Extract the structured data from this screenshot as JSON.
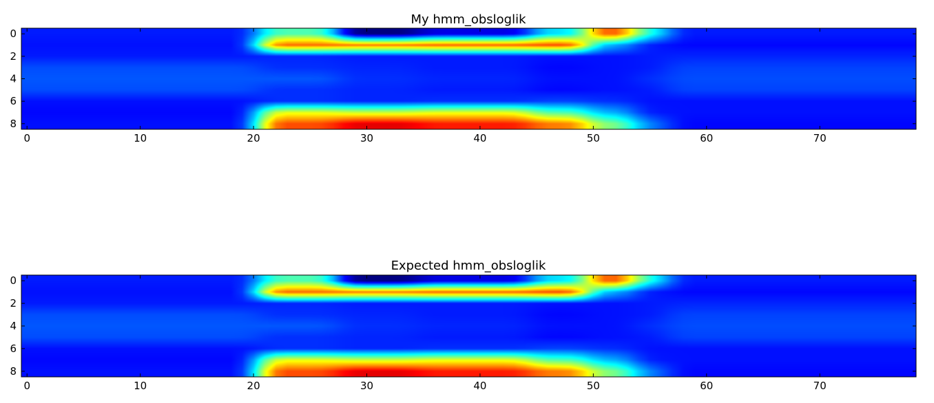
{
  "chart_data": [
    {
      "type": "heatmap",
      "title": "My hmm_obsloglik",
      "xlabel": "",
      "ylabel": "",
      "colormap": "jet",
      "interpolation": "bicubic",
      "xlim": [
        -0.5,
        78.5
      ],
      "ylim": [
        8.5,
        -0.5
      ],
      "xticks": [
        0,
        10,
        20,
        30,
        40,
        50,
        60,
        70
      ],
      "yticks": [
        0,
        2,
        4,
        6,
        8
      ],
      "rows": 9,
      "cols": 79,
      "segments": [
        {
          "x_from": 0,
          "x_to": 20,
          "values": [
            0.1,
            0.09,
            0.1,
            0.15,
            0.16,
            0.15,
            0.09,
            0.08,
            0.09
          ]
        },
        {
          "x_from": 21,
          "x_to": 27,
          "values": [
            0.4,
            0.72,
            0.11,
            0.12,
            0.16,
            0.12,
            0.12,
            0.55,
            0.75
          ]
        },
        {
          "x_from": 28,
          "x_to": 34,
          "values": [
            -0.05,
            0.7,
            0.1,
            0.11,
            0.12,
            0.11,
            0.11,
            0.52,
            0.85
          ]
        },
        {
          "x_from": 35,
          "x_to": 44,
          "values": [
            0.05,
            0.72,
            0.1,
            0.1,
            0.11,
            0.1,
            0.12,
            0.55,
            0.8
          ]
        },
        {
          "x_from": 45,
          "x_to": 49,
          "values": [
            0.3,
            0.75,
            0.09,
            0.08,
            0.09,
            0.08,
            0.14,
            0.4,
            0.7
          ]
        },
        {
          "x_from": 50,
          "x_to": 53,
          "values": [
            0.75,
            0.25,
            0.09,
            0.09,
            0.09,
            0.09,
            0.12,
            0.25,
            0.45
          ]
        },
        {
          "x_from": 54,
          "x_to": 56,
          "values": [
            0.35,
            0.1,
            0.1,
            0.1,
            0.12,
            0.1,
            0.09,
            0.1,
            0.2
          ]
        },
        {
          "x_from": 57,
          "x_to": 78,
          "values": [
            0.1,
            0.08,
            0.11,
            0.14,
            0.15,
            0.14,
            0.09,
            0.09,
            0.08
          ]
        }
      ]
    },
    {
      "type": "heatmap",
      "title": "Expected hmm_obsloglik",
      "xlabel": "",
      "ylabel": "",
      "colormap": "jet",
      "interpolation": "bicubic",
      "xlim": [
        -0.5,
        78.5
      ],
      "ylim": [
        8.5,
        -0.5
      ],
      "xticks": [
        0,
        10,
        20,
        30,
        40,
        50,
        60,
        70
      ],
      "yticks": [
        0,
        2,
        4,
        6,
        8
      ],
      "rows": 9,
      "cols": 79,
      "segments": [
        {
          "x_from": 0,
          "x_to": 20,
          "values": [
            0.1,
            0.09,
            0.1,
            0.15,
            0.16,
            0.15,
            0.09,
            0.08,
            0.09
          ]
        },
        {
          "x_from": 21,
          "x_to": 27,
          "values": [
            0.4,
            0.72,
            0.11,
            0.12,
            0.16,
            0.12,
            0.12,
            0.55,
            0.75
          ]
        },
        {
          "x_from": 28,
          "x_to": 34,
          "values": [
            -0.05,
            0.7,
            0.1,
            0.11,
            0.12,
            0.11,
            0.11,
            0.52,
            0.85
          ]
        },
        {
          "x_from": 35,
          "x_to": 44,
          "values": [
            0.05,
            0.72,
            0.1,
            0.1,
            0.11,
            0.1,
            0.12,
            0.55,
            0.8
          ]
        },
        {
          "x_from": 45,
          "x_to": 49,
          "values": [
            0.3,
            0.75,
            0.09,
            0.08,
            0.09,
            0.08,
            0.14,
            0.4,
            0.7
          ]
        },
        {
          "x_from": 50,
          "x_to": 53,
          "values": [
            0.75,
            0.25,
            0.09,
            0.09,
            0.09,
            0.09,
            0.12,
            0.25,
            0.45
          ]
        },
        {
          "x_from": 54,
          "x_to": 56,
          "values": [
            0.35,
            0.1,
            0.1,
            0.1,
            0.12,
            0.1,
            0.09,
            0.1,
            0.2
          ]
        },
        {
          "x_from": 57,
          "x_to": 78,
          "values": [
            0.1,
            0.08,
            0.11,
            0.14,
            0.15,
            0.14,
            0.09,
            0.09,
            0.08
          ]
        }
      ]
    }
  ]
}
